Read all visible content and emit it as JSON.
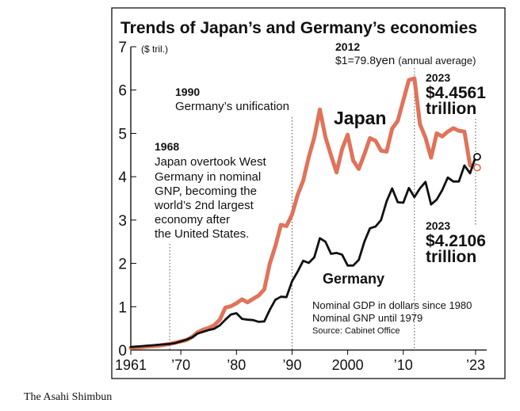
{
  "chart_data": {
    "type": "line",
    "title": "Trends of Japan’s and Germany’s economies",
    "y_unit_label": "($ tril.)",
    "ylim": [
      0,
      7
    ],
    "y_ticks": [
      "0",
      "1",
      "2",
      "3",
      "4",
      "5",
      "6",
      "7"
    ],
    "xlim": [
      1961,
      2025
    ],
    "x_ticks": [
      {
        "year": 1961,
        "label": "1961"
      },
      {
        "year": 1970,
        "label": "’70"
      },
      {
        "year": 1980,
        "label": "’80"
      },
      {
        "year": 1990,
        "label": "’90"
      },
      {
        "year": 2000,
        "label": "2000"
      },
      {
        "year": 2010,
        "label": "’10"
      },
      {
        "year": 2023,
        "label": "’23"
      }
    ],
    "series": [
      {
        "name": "Japan",
        "color": "#e0735a",
        "points": [
          [
            1961,
            0.05
          ],
          [
            1962,
            0.06
          ],
          [
            1963,
            0.07
          ],
          [
            1964,
            0.08
          ],
          [
            1965,
            0.09
          ],
          [
            1966,
            0.1
          ],
          [
            1967,
            0.12
          ],
          [
            1968,
            0.14
          ],
          [
            1969,
            0.17
          ],
          [
            1970,
            0.2
          ],
          [
            1971,
            0.23
          ],
          [
            1972,
            0.3
          ],
          [
            1973,
            0.41
          ],
          [
            1974,
            0.47
          ],
          [
            1975,
            0.51
          ],
          [
            1976,
            0.57
          ],
          [
            1977,
            0.7
          ],
          [
            1978,
            0.98
          ],
          [
            1979,
            1.01
          ],
          [
            1980,
            1.08
          ],
          [
            1981,
            1.17
          ],
          [
            1982,
            1.1
          ],
          [
            1983,
            1.18
          ],
          [
            1984,
            1.26
          ],
          [
            1985,
            1.4
          ],
          [
            1986,
            2.0
          ],
          [
            1987,
            2.4
          ],
          [
            1988,
            2.89
          ],
          [
            1989,
            2.86
          ],
          [
            1990,
            3.13
          ],
          [
            1991,
            3.58
          ],
          [
            1992,
            3.91
          ],
          [
            1993,
            4.45
          ],
          [
            1994,
            4.91
          ],
          [
            1995,
            5.55
          ],
          [
            1996,
            4.92
          ],
          [
            1997,
            4.49
          ],
          [
            1998,
            4.1
          ],
          [
            1999,
            4.64
          ],
          [
            2000,
            4.97
          ],
          [
            2001,
            4.37
          ],
          [
            2002,
            4.18
          ],
          [
            2003,
            4.52
          ],
          [
            2004,
            4.89
          ],
          [
            2005,
            4.83
          ],
          [
            2006,
            4.6
          ],
          [
            2007,
            4.58
          ],
          [
            2008,
            5.11
          ],
          [
            2009,
            5.29
          ],
          [
            2010,
            5.76
          ],
          [
            2011,
            6.23
          ],
          [
            2012,
            6.27
          ],
          [
            2013,
            5.21
          ],
          [
            2014,
            4.9
          ],
          [
            2015,
            4.44
          ],
          [
            2016,
            5.0
          ],
          [
            2017,
            4.93
          ],
          [
            2018,
            5.04
          ],
          [
            2019,
            5.12
          ],
          [
            2020,
            5.06
          ],
          [
            2021,
            5.04
          ],
          [
            2022,
            4.26
          ],
          [
            2023,
            4.21
          ]
        ]
      },
      {
        "name": "Germany",
        "color": "#111111",
        "points": [
          [
            1961,
            0.07
          ],
          [
            1962,
            0.08
          ],
          [
            1963,
            0.09
          ],
          [
            1964,
            0.1
          ],
          [
            1965,
            0.11
          ],
          [
            1966,
            0.12
          ],
          [
            1967,
            0.13
          ],
          [
            1968,
            0.14
          ],
          [
            1969,
            0.16
          ],
          [
            1970,
            0.2
          ],
          [
            1971,
            0.24
          ],
          [
            1972,
            0.29
          ],
          [
            1973,
            0.38
          ],
          [
            1974,
            0.42
          ],
          [
            1975,
            0.46
          ],
          [
            1976,
            0.49
          ],
          [
            1977,
            0.57
          ],
          [
            1978,
            0.7
          ],
          [
            1979,
            0.82
          ],
          [
            1980,
            0.85
          ],
          [
            1981,
            0.72
          ],
          [
            1982,
            0.7
          ],
          [
            1983,
            0.69
          ],
          [
            1984,
            0.65
          ],
          [
            1985,
            0.66
          ],
          [
            1986,
            0.93
          ],
          [
            1987,
            1.16
          ],
          [
            1988,
            1.23
          ],
          [
            1989,
            1.22
          ],
          [
            1990,
            1.59
          ],
          [
            1991,
            1.81
          ],
          [
            1992,
            2.06
          ],
          [
            1993,
            2.01
          ],
          [
            1994,
            2.14
          ],
          [
            1995,
            2.58
          ],
          [
            1996,
            2.5
          ],
          [
            1997,
            2.22
          ],
          [
            1998,
            2.24
          ],
          [
            1999,
            2.2
          ],
          [
            2000,
            1.95
          ],
          [
            2001,
            1.95
          ],
          [
            2002,
            2.08
          ],
          [
            2003,
            2.5
          ],
          [
            2004,
            2.81
          ],
          [
            2005,
            2.85
          ],
          [
            2006,
            3.0
          ],
          [
            2007,
            3.43
          ],
          [
            2008,
            3.73
          ],
          [
            2009,
            3.41
          ],
          [
            2010,
            3.4
          ],
          [
            2011,
            3.74
          ],
          [
            2012,
            3.53
          ],
          [
            2013,
            3.73
          ],
          [
            2014,
            3.88
          ],
          [
            2015,
            3.36
          ],
          [
            2016,
            3.47
          ],
          [
            2017,
            3.69
          ],
          [
            2018,
            3.98
          ],
          [
            2019,
            3.89
          ],
          [
            2020,
            3.89
          ],
          [
            2021,
            4.26
          ],
          [
            2022,
            4.08
          ],
          [
            2023,
            4.46
          ]
        ]
      }
    ],
    "series_labels": {
      "japan": "Japan",
      "germany": "Germany"
    },
    "annotations": {
      "a1968": {
        "year_label": "1968",
        "lines": [
          "Japan overtook West",
          "Germany in nominal",
          "GNP, becoming the",
          "world’s 2nd largest",
          "economy after",
          "the United States."
        ]
      },
      "a1990": {
        "year_label": "1990",
        "line": "Germany’s unification"
      },
      "a2012": {
        "year_label": "2012",
        "rate": "$1=79.8",
        "rate_unit": "yen",
        "note": "(annual average)"
      },
      "germany_2023": {
        "year_label": "2023",
        "value": "$4.4561",
        "unit": "trillion"
      },
      "japan_2023": {
        "year_label": "2023",
        "value": "$4.2106",
        "unit": "trillion"
      }
    },
    "notes": [
      "Nominal GDP in dollars since 1980",
      "Nominal GNP until 1979",
      "Source: Cabinet Office"
    ],
    "colors": {
      "japan": "#e0735a",
      "germany": "#111111",
      "japan_text": "#e0735a"
    }
  },
  "credit": "The Asahi Shimbun"
}
